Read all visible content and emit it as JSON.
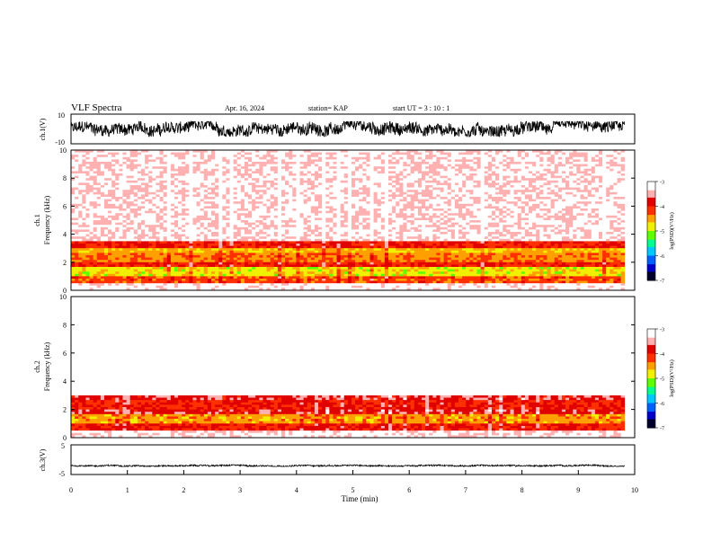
{
  "header": {
    "title": "VLF Spectra",
    "date": "Apr. 16, 2024",
    "station": "station= KAP",
    "start": "start UT =   3 : 10 : 1"
  },
  "colorbar": {
    "label": "log(PSD)(V²/Hz)",
    "ticks": [
      "-3",
      "-4",
      "-5",
      "-6",
      "-7"
    ],
    "range": [
      -7,
      -3
    ],
    "colors": [
      "#00002a",
      "#0000c8",
      "#0060ff",
      "#00c8ff",
      "#00ff90",
      "#60ff00",
      "#f0f000",
      "#ffa000",
      "#ff3000",
      "#e00000",
      "#ffb0b0",
      "#ffffff"
    ]
  },
  "chart_data": [
    {
      "type": "line",
      "panel": "ch1-waveform",
      "ylabel": "ch.1(V)",
      "xlim": [
        0,
        10
      ],
      "ylim": [
        -10,
        10
      ],
      "yticks": [
        "10",
        "-10"
      ],
      "x_extent_min": 9.82,
      "noise_band": [
        -5,
        5
      ],
      "color": "#000000"
    },
    {
      "type": "heatmap",
      "panel": "ch1-spectrogram",
      "ylabel": "ch.1\nFrequency (kHz)",
      "xlim": [
        0,
        10
      ],
      "ylim": [
        0,
        10
      ],
      "yticks": [
        "10",
        "8",
        "6",
        "4",
        "2",
        "0"
      ],
      "log_psd_bands": [
        {
          "f_from": 3.5,
          "f_to": 10.0,
          "level": -3.3
        },
        {
          "f_from": 3.0,
          "f_to": 3.5,
          "level": -4.0
        },
        {
          "f_from": 2.6,
          "f_to": 3.0,
          "level": -4.6
        },
        {
          "f_from": 2.0,
          "f_to": 2.6,
          "level": -4.4
        },
        {
          "f_from": 1.7,
          "f_to": 2.0,
          "level": -4.0
        },
        {
          "f_from": 1.0,
          "f_to": 1.7,
          "level": -4.8
        },
        {
          "f_from": 0.5,
          "f_to": 1.0,
          "level": -4.2
        },
        {
          "f_from": 0.0,
          "f_to": 0.5,
          "level": -3.2
        }
      ]
    },
    {
      "type": "heatmap",
      "panel": "ch2-spectrogram",
      "ylabel": "ch.2\nFrequency (kHz)",
      "xlim": [
        0,
        10
      ],
      "ylim": [
        0,
        10
      ],
      "yticks": [
        "10",
        "8",
        "6",
        "4",
        "2",
        "0"
      ],
      "log_psd_bands": [
        {
          "f_from": 3.0,
          "f_to": 10.0,
          "level": -3.05
        },
        {
          "f_from": 2.6,
          "f_to": 3.0,
          "level": -3.8
        },
        {
          "f_from": 2.0,
          "f_to": 2.6,
          "level": -4.0
        },
        {
          "f_from": 1.7,
          "f_to": 2.0,
          "level": -3.8
        },
        {
          "f_from": 1.0,
          "f_to": 1.7,
          "level": -4.5
        },
        {
          "f_from": 0.5,
          "f_to": 1.0,
          "level": -4.0
        },
        {
          "f_from": 0.0,
          "f_to": 0.5,
          "level": -3.3
        }
      ]
    },
    {
      "type": "line",
      "panel": "ch3-waveform",
      "ylabel": "ch.3(V)",
      "xlim": [
        0,
        10
      ],
      "ylim": [
        -5,
        5
      ],
      "yticks": [
        "5",
        "-5"
      ],
      "x_extent_min": 9.82,
      "noise_band": [
        -2.3,
        -1.7
      ],
      "color": "#000000"
    }
  ],
  "x_axis": {
    "label": "Time (min)",
    "ticks": [
      "0",
      "1",
      "2",
      "3",
      "4",
      "5",
      "6",
      "7",
      "8",
      "9",
      "10"
    ]
  }
}
